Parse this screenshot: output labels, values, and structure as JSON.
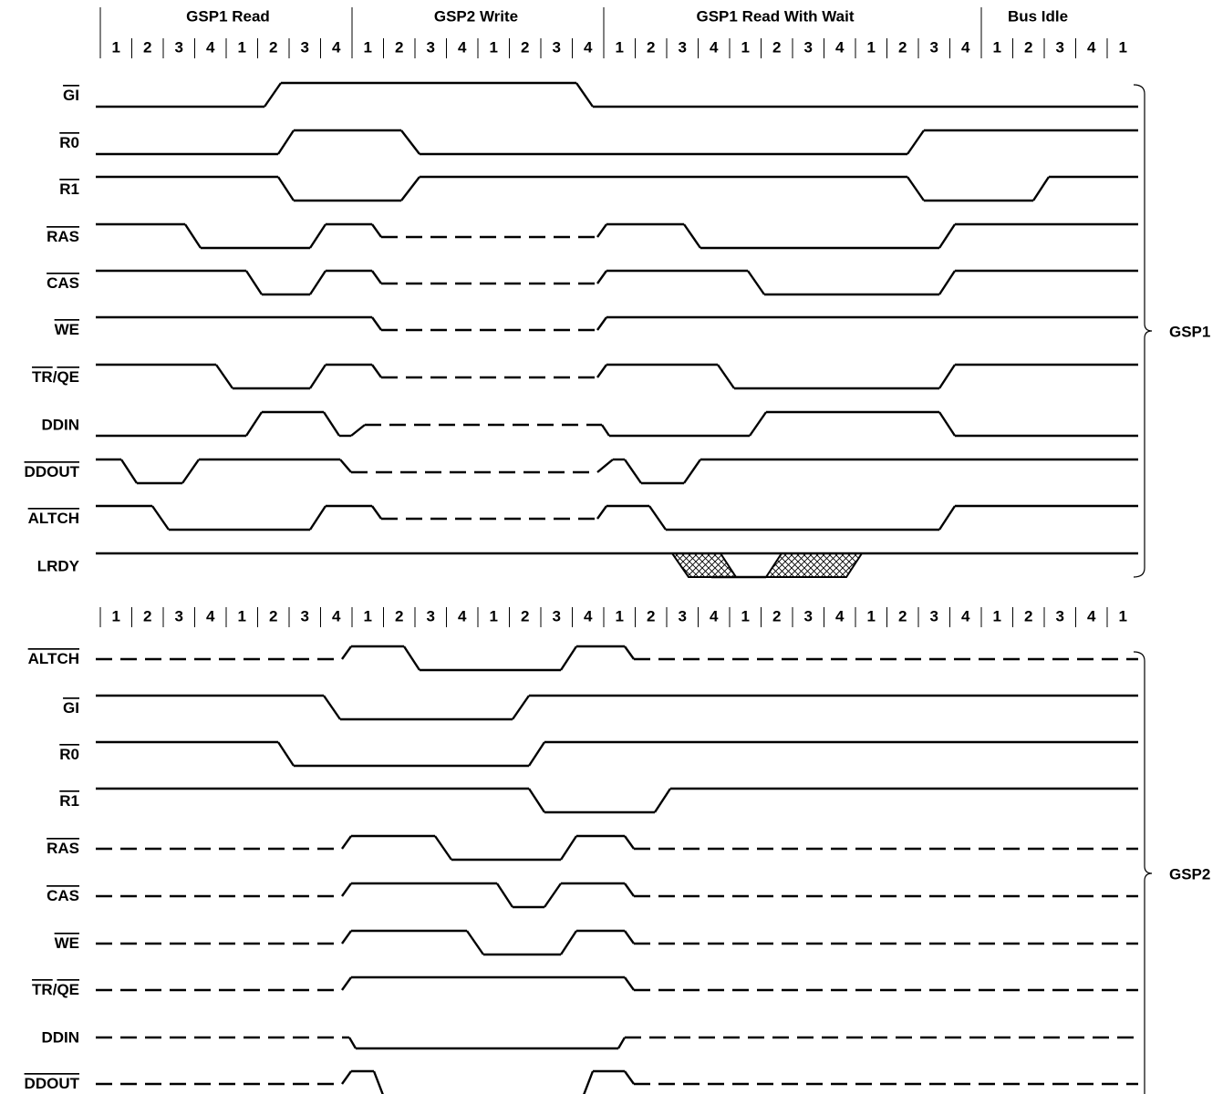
{
  "phases": [
    "GSP1 Read",
    "GSP2 Write",
    "GSP1 Read With Wait",
    "Bus Idle"
  ],
  "clock_top": [
    1,
    2,
    3,
    4,
    1,
    2,
    3,
    4,
    1,
    2,
    3,
    4,
    1,
    2,
    3,
    4,
    1,
    2,
    3,
    4,
    1,
    2,
    3,
    4,
    1,
    2,
    3,
    4,
    1,
    2,
    3,
    4,
    1
  ],
  "clock_bottom": [
    1,
    2,
    3,
    4,
    1,
    2,
    3,
    4,
    1,
    2,
    3,
    4,
    1,
    2,
    3,
    4,
    1,
    2,
    3,
    4,
    1,
    2,
    3,
    4,
    1,
    2,
    3,
    4,
    1,
    2,
    3,
    4,
    1
  ],
  "groups": [
    {
      "name": "GSP1",
      "signals": [
        "GI",
        "R0",
        "R1",
        "RAS",
        "CAS",
        "WE",
        "TR/QE",
        "DDIN",
        "DDOUT",
        "ALTCH",
        "LRDY"
      ]
    },
    {
      "name": "GSP2",
      "signals": [
        "ALTCH",
        "GI",
        "R0",
        "R1",
        "RAS",
        "CAS",
        "WE",
        "TR/QE",
        "DDIN",
        "DDOUT"
      ]
    }
  ]
}
